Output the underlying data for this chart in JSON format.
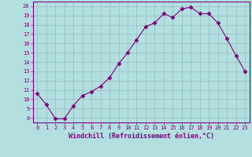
{
  "x": [
    0,
    1,
    2,
    3,
    4,
    5,
    6,
    7,
    8,
    9,
    10,
    11,
    12,
    13,
    14,
    15,
    16,
    17,
    18,
    19,
    20,
    21,
    22,
    23
  ],
  "y": [
    10.6,
    9.4,
    7.9,
    7.9,
    9.3,
    10.4,
    10.8,
    11.4,
    12.3,
    13.8,
    15.0,
    16.4,
    17.8,
    18.2,
    19.2,
    18.8,
    19.7,
    19.9,
    19.2,
    19.2,
    18.2,
    16.5,
    14.7,
    13.0
  ],
  "line_color": "#800080",
  "marker": "D",
  "marker_size": 2.5,
  "bg_color": "#b2e0e0",
  "grid_color": "#9ab8b8",
  "xlabel": "Windchill (Refroidissement éolien,°C)",
  "xlim": [
    -0.5,
    23.5
  ],
  "ylim": [
    7.5,
    20.5
  ],
  "xticks": [
    0,
    1,
    2,
    3,
    4,
    5,
    6,
    7,
    8,
    9,
    10,
    11,
    12,
    13,
    14,
    15,
    16,
    17,
    18,
    19,
    20,
    21,
    22,
    23
  ],
  "yticks": [
    8,
    9,
    10,
    11,
    12,
    13,
    14,
    15,
    16,
    17,
    18,
    19,
    20
  ],
  "tick_fontsize": 5.0,
  "xlabel_fontsize": 6.0,
  "label_color": "#800080",
  "spine_color": "#800080"
}
